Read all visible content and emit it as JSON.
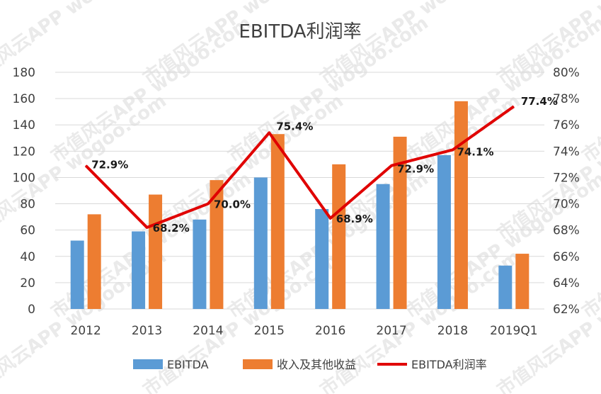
{
  "watermark": "市值风云APP wogoo.com",
  "chart_data": {
    "type": "bar",
    "title": "EBITDA利润率",
    "categories": [
      "2012",
      "2013",
      "2014",
      "2015",
      "2016",
      "2017",
      "2018",
      "2019Q1"
    ],
    "series": [
      {
        "name": "EBITDA",
        "type": "bar",
        "axis": "left",
        "color": "#5b9bd5",
        "values": [
          52,
          59,
          68,
          100,
          76,
          95,
          117,
          33
        ]
      },
      {
        "name": "收入及其他收益",
        "type": "bar",
        "axis": "left",
        "color": "#ed7d31",
        "values": [
          72,
          87,
          98,
          133,
          110,
          131,
          158,
          42
        ]
      },
      {
        "name": "EBITDA利润率",
        "type": "line",
        "axis": "right",
        "color": "#e00000",
        "values": [
          72.9,
          68.2,
          70.0,
          75.4,
          68.9,
          72.9,
          74.1,
          77.4
        ],
        "labels": [
          "72.9%",
          "68.2%",
          "70.0%",
          "75.4%",
          "68.9%",
          "72.9%",
          "74.1%",
          "77.4%"
        ]
      }
    ],
    "y_left": {
      "min": 0,
      "max": 180,
      "ticks": [
        "0",
        "20",
        "40",
        "60",
        "80",
        "100",
        "120",
        "140",
        "160",
        "180"
      ]
    },
    "y_right": {
      "min": 62,
      "max": 80,
      "ticks": [
        "62%",
        "64%",
        "66%",
        "68%",
        "70%",
        "72%",
        "74%",
        "76%",
        "78%",
        "80%"
      ]
    },
    "grid": true,
    "legend_position": "bottom"
  }
}
